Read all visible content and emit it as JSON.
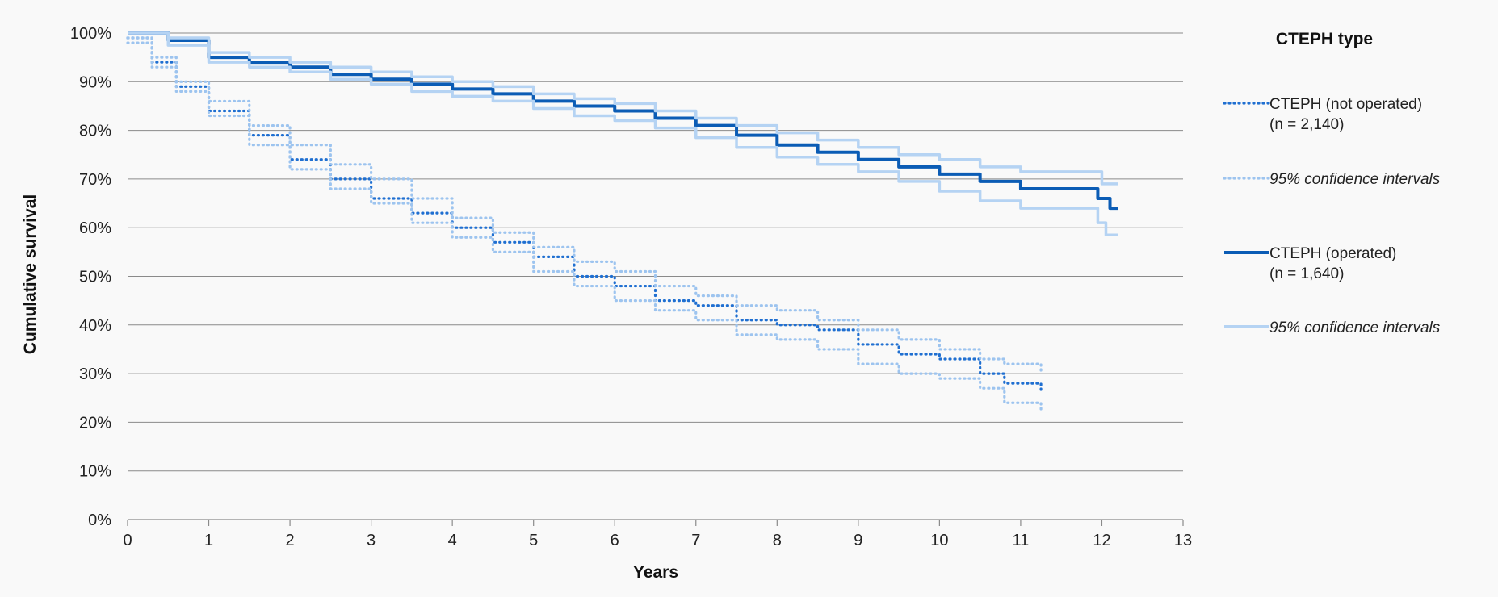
{
  "chart_data": {
    "type": "line",
    "xlabel": "Years",
    "ylabel": "Cumulative survival",
    "xlim": [
      0,
      13
    ],
    "ylim": [
      0,
      100
    ],
    "x_ticks": [
      "0",
      "1",
      "2",
      "3",
      "4",
      "5",
      "6",
      "7",
      "8",
      "9",
      "10",
      "11",
      "12",
      "13"
    ],
    "y_ticks": [
      "0%",
      "10%",
      "20%",
      "30%",
      "40%",
      "50%",
      "60%",
      "70%",
      "80%",
      "90%",
      "100%"
    ],
    "grid": true,
    "legend": {
      "title": "CTEPH type",
      "position": "right",
      "entries": [
        {
          "line1": "CTEPH (not operated)",
          "line2": "(n = 2,140)",
          "color": "#1f6fd1",
          "style": "dotted",
          "italic": false
        },
        {
          "line1": "95% confidence intervals",
          "line2": "",
          "color": "#9dc4ef",
          "style": "dotted",
          "italic": true
        },
        {
          "line1": "CTEPH (operated)",
          "line2": "(n = 1,640)",
          "color": "#0b5cb5",
          "style": "solid",
          "italic": false
        },
        {
          "line1": "95% confidence intervals",
          "line2": "",
          "color": "#b5d3f3",
          "style": "solid",
          "italic": true
        }
      ]
    },
    "series": [
      {
        "name": "CTEPH (not operated)",
        "color": "#1f6fd1",
        "style": "dotted",
        "x": [
          0,
          0.3,
          0.6,
          1,
          1.5,
          2,
          2.5,
          3,
          3.5,
          4,
          4.5,
          5,
          5.5,
          6,
          6.5,
          7,
          7.5,
          8,
          8.5,
          9,
          9.5,
          10,
          10.5,
          10.8,
          11.25
        ],
        "y": [
          99,
          94,
          89,
          84,
          79,
          74,
          70,
          66,
          63,
          60,
          57,
          54,
          50,
          48,
          45,
          44,
          41,
          40,
          39,
          36,
          34,
          33,
          30,
          28,
          26.5
        ]
      },
      {
        "name": "95% confidence intervals (not operated, upper)",
        "color": "#9dc4ef",
        "style": "dotted",
        "x": [
          0,
          0.3,
          0.6,
          1,
          1.5,
          2,
          2.5,
          3,
          3.5,
          4,
          4.5,
          5,
          5.5,
          6,
          6.5,
          7,
          7.5,
          8,
          8.5,
          9,
          9.5,
          10,
          10.5,
          10.8,
          11.25
        ],
        "y": [
          99,
          95,
          90,
          86,
          81,
          77,
          73,
          70,
          66,
          62,
          59,
          56,
          53,
          51,
          48,
          46,
          44,
          43,
          41,
          39,
          37,
          35,
          33,
          32,
          30
        ]
      },
      {
        "name": "95% confidence intervals (not operated, lower)",
        "color": "#9dc4ef",
        "style": "dotted",
        "x": [
          0,
          0.3,
          0.6,
          1,
          1.5,
          2,
          2.5,
          3,
          3.5,
          4,
          4.5,
          5,
          5.5,
          6,
          6.5,
          7,
          7.5,
          8,
          8.5,
          9,
          9.5,
          10,
          10.5,
          10.8,
          11.25
        ],
        "y": [
          98,
          93,
          88,
          83,
          77,
          72,
          68,
          65,
          61,
          58,
          55,
          51,
          48,
          45,
          43,
          41,
          38,
          37,
          35,
          32,
          30,
          29,
          27,
          24,
          22.5
        ]
      },
      {
        "name": "CTEPH (operated)",
        "color": "#0b5cb5",
        "style": "solid",
        "x": [
          0,
          0.5,
          1,
          1.5,
          2,
          2.5,
          3,
          3.5,
          4,
          4.5,
          5,
          5.5,
          6,
          6.5,
          7,
          7.5,
          8,
          8.5,
          9,
          9.5,
          10,
          10.5,
          11,
          11.5,
          11.85,
          11.95,
          12.1,
          12.2
        ],
        "y": [
          100,
          98.5,
          95,
          94,
          93,
          91.5,
          90.5,
          89.5,
          88.5,
          87.5,
          86,
          85,
          84,
          82.5,
          81,
          79,
          77,
          75.5,
          74,
          72.5,
          71,
          69.5,
          68,
          68,
          68,
          66,
          64,
          64
        ]
      },
      {
        "name": "95% confidence intervals (operated, upper)",
        "color": "#b5d3f3",
        "style": "solid",
        "x": [
          0,
          0.5,
          1,
          1.5,
          2,
          2.5,
          3,
          3.5,
          4,
          4.5,
          5,
          5.5,
          6,
          6.5,
          7,
          7.5,
          8,
          8.5,
          9,
          9.5,
          10,
          10.5,
          11,
          11.5,
          11.85,
          12,
          12.2
        ],
        "y": [
          100,
          99,
          96,
          95,
          94,
          93,
          92,
          91,
          90,
          89,
          87.5,
          86.5,
          85.5,
          84,
          82.5,
          81,
          79.5,
          78,
          76.5,
          75,
          74,
          72.5,
          71.5,
          71.5,
          71.5,
          69,
          69
        ]
      },
      {
        "name": "95% confidence intervals (operated, lower)",
        "color": "#b5d3f3",
        "style": "solid",
        "x": [
          0,
          0.5,
          1,
          1.5,
          2,
          2.5,
          3,
          3.5,
          4,
          4.5,
          5,
          5.5,
          6,
          6.5,
          7,
          7.5,
          8,
          8.5,
          9,
          9.5,
          10,
          10.5,
          11,
          11.5,
          11.85,
          11.95,
          12.05,
          12.2
        ],
        "y": [
          100,
          97.5,
          94,
          93,
          92,
          90.5,
          89.5,
          88,
          87,
          86,
          84.5,
          83,
          82,
          80.5,
          78.5,
          76.5,
          74.5,
          73,
          71.5,
          69.5,
          67.5,
          65.5,
          64,
          64,
          64,
          61,
          58.5,
          58.5
        ]
      }
    ]
  }
}
